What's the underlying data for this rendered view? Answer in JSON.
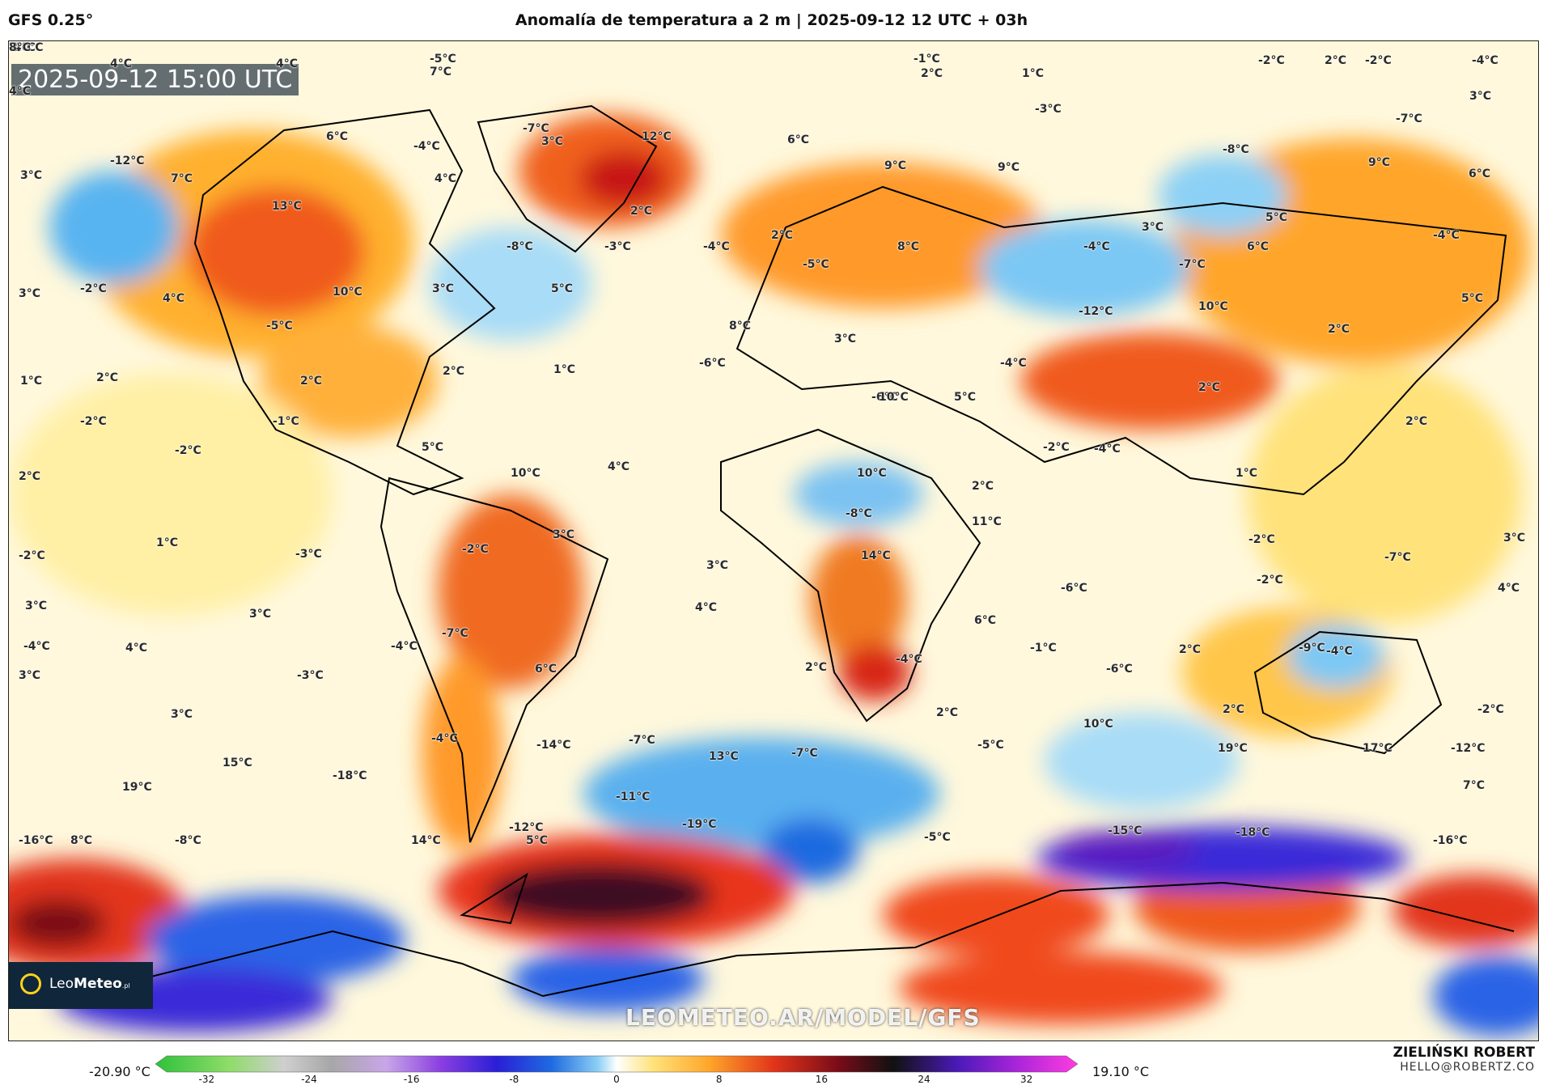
{
  "header": {
    "model": "GFS 0.25°",
    "title": "Anomalía de temperatura a 2 m | 2025-09-12 12 UTC + 03h"
  },
  "map": {
    "valid_time": "2025-09-12 15:00 UTC",
    "watermark": "LEOMETEO.AR/MODEL/GFS",
    "logo": {
      "name_light": "Leo",
      "name_bold": "Meteo",
      "suffix": ".pl"
    },
    "labels": [
      "4°C",
      "4°C",
      "-5°C",
      "7°C",
      "-1°C",
      "1°C",
      "2°C",
      "-2°C",
      "2°C",
      "-2°C",
      "-4°C",
      "4°C",
      "6°C",
      "3°C",
      "-7°C",
      "3°C",
      "12°C",
      "6°C",
      "-3°C",
      "-7°C",
      "-8°C",
      "-12°C",
      "3°C",
      "7°C",
      "-4°C",
      "4°C",
      "13°C",
      "9°C",
      "9°C",
      "9°C",
      "6°C",
      "2°C",
      "3°C",
      "5°C",
      "-8°C",
      "-3°C",
      "-4°C",
      "2°C",
      "8°C",
      "-4°C",
      "-7°C",
      "6°C",
      "-4°C",
      "3°C",
      "-2°C",
      "4°C",
      "10°C",
      "3°C",
      "5°C",
      "-5°C",
      "5°C",
      "2°C",
      "-5°C",
      "8°C",
      "3°C",
      "-12°C",
      "10°C",
      "-6°C",
      "-4°C",
      "1°C",
      "2°C",
      "2°C",
      "2°C",
      "1°C",
      "-6°C",
      "10°C",
      "5°C",
      "2°C",
      "-2°C",
      "-1°C",
      "2°C",
      "-2°C",
      "5°C",
      "-2°C",
      "10°C",
      "4°C",
      "10°C",
      "-8°C",
      "2°C",
      "-4°C",
      "2°C",
      "1°C",
      "1°C",
      "3°C",
      "-3°C",
      "-2°C",
      "14°C",
      "11°C",
      "-2°C",
      "-7°C",
      "3°C",
      "-2°C",
      "3°C",
      "3°C",
      "-2°C",
      "4°C",
      "6°C",
      "-6°C",
      "-4°C",
      "-1°C",
      "2°C",
      "4°C",
      "-4°C",
      "3°C",
      "4°C",
      "-4°C",
      "-7°C",
      "-4°C",
      "2°C",
      "3°C",
      "-3°C",
      "6°C",
      "-6°C",
      "-9°C",
      "2°C",
      "-2°C",
      "3°C",
      "2°C",
      "-4°C",
      "-14°C",
      "-7°C",
      "-7°C",
      "-5°C",
      "10°C",
      "19°C",
      "17°C",
      "-12°C",
      "15°C",
      "-18°C",
      "13°C",
      "7°C",
      "19°C",
      "-11°C",
      "-19°C",
      "-12°C",
      "-15°C",
      "-18°C",
      "-16°C",
      "8°C",
      "-8°C",
      "14°C",
      "5°C",
      "-5°C",
      "-16°C",
      "-10°C",
      "-2°C",
      "-4°C",
      "7°C",
      "8°C"
    ]
  },
  "colorbar": {
    "min_label": "-20.90 °C",
    "max_label": "19.10 °C",
    "ticks": [
      "-32",
      "-24",
      "-16",
      "-8",
      "0",
      "8",
      "16",
      "24",
      "32"
    ]
  },
  "author": {
    "name": "ZIELIŃSKI ROBERT",
    "email": "HELLO@ROBERTZ.CO"
  }
}
